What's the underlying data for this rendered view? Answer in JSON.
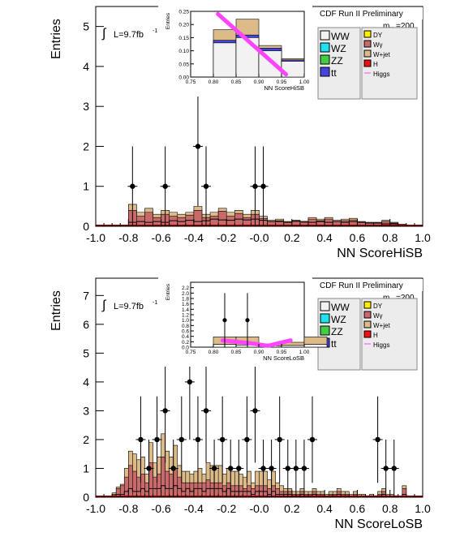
{
  "colors": {
    "ww": "#f2f2f2",
    "wz": "#22e0ee",
    "zz": "#44cc44",
    "tt": "#4444dd",
    "dy": "#ffee00",
    "wg": "#c86a6a",
    "wjet": "#ddbb88",
    "h": "#ee1111",
    "higgs": "#ff44ff",
    "frame": "#000000"
  },
  "chart_data": [
    {
      "type": "histogram",
      "header": "CDF Run II Preliminary",
      "xlabel": "NN ScoreHiSB",
      "ylabel": "Entries",
      "lumi_label": "L=9.7fb",
      "lumi_exp": "-1",
      "mass_label": "m",
      "mass_sub": "H",
      "mass_value": "=200",
      "xlim": [
        -1.0,
        1.0
      ],
      "ylim": [
        0,
        5.5
      ],
      "xticks": [
        "-1.0",
        "-0.8",
        "-0.6",
        "-0.4",
        "-0.2",
        "-0.0",
        "0.2",
        "0.4",
        "0.6",
        "0.8",
        "1.0"
      ],
      "yticks": [
        "0",
        "1",
        "2",
        "3",
        "4",
        "5"
      ],
      "legend_left": [
        "WW",
        "WZ",
        "ZZ",
        "tt"
      ],
      "legend_right": [
        "DY",
        "Wγ",
        "W+jet",
        "H",
        "Higgs"
      ],
      "bin_edges_from": -0.8,
      "bin_width": 0.05,
      "stack_total": [
        0.55,
        0.35,
        0.45,
        0.3,
        0.4,
        0.35,
        0.3,
        0.35,
        0.5,
        0.3,
        0.35,
        0.45,
        0.35,
        0.4,
        0.3,
        0.4,
        0.25,
        0.15,
        0.18,
        0.12,
        0.15,
        0.12,
        0.22,
        0.18,
        0.22,
        0.15,
        0.18,
        0.2,
        0.12,
        0.1,
        0.1,
        0.15,
        0.1,
        0.05
      ],
      "wjet_top": [
        0.55,
        0.35,
        0.45,
        0.3,
        0.4,
        0.35,
        0.3,
        0.35,
        0.5,
        0.3,
        0.35,
        0.45,
        0.35,
        0.4,
        0.3,
        0.4,
        0.25,
        0.15,
        0.18,
        0.12,
        0.15,
        0.12,
        0.22,
        0.18,
        0.22,
        0.15,
        0.18,
        0.2,
        0.12,
        0.1,
        0.1,
        0.15,
        0.1,
        0.05
      ],
      "wg_top": [
        0.4,
        0.25,
        0.35,
        0.22,
        0.3,
        0.25,
        0.22,
        0.28,
        0.4,
        0.22,
        0.25,
        0.38,
        0.25,
        0.32,
        0.22,
        0.3,
        0.2,
        0.12,
        0.14,
        0.1,
        0.12,
        0.1,
        0.18,
        0.14,
        0.18,
        0.12,
        0.14,
        0.16,
        0.1,
        0.08,
        0.08,
        0.12,
        0.08,
        0.04
      ],
      "ww_line": [
        0.1,
        0.12,
        0.1,
        0.12,
        0.1,
        0.14,
        0.12,
        0.15,
        0.12,
        0.14,
        0.18,
        0.16,
        0.15,
        0.18,
        0.16,
        0.18,
        0.15,
        0.12,
        0.12,
        0.1,
        0.14,
        0.12,
        0.1,
        0.12,
        0.1,
        0.12,
        0.1,
        0.12,
        0.1,
        0.08,
        0.08,
        0.06,
        0.06,
        0.04
      ],
      "data_x": [
        -0.775,
        -0.575,
        -0.375,
        -0.325,
        -0.025,
        0.025
      ],
      "data_y": [
        1,
        1,
        2,
        1,
        1,
        1
      ],
      "data_err": [
        1.0,
        1.0,
        1.5,
        1.0,
        1.0,
        1.0
      ],
      "inset": {
        "xlabel": "NN ScoreHiSB",
        "ylabel": "Entries",
        "xlim": [
          0.75,
          1.0
        ],
        "ylim": [
          0,
          0.25
        ],
        "xticks": [
          "0.75",
          "0.80",
          "0.85",
          "0.90",
          "0.95",
          "1.00"
        ],
        "yticks": [
          "0.00",
          "0.05",
          "0.10",
          "0.15",
          "0.20",
          "0.25"
        ],
        "bins_from": 0.8,
        "bin_width": 0.05,
        "stack_total": [
          0.18,
          0.22,
          0.12,
          0.07
        ],
        "ww_top": [
          0.13,
          0.15,
          0.1,
          0.06
        ],
        "tt_top": [
          0.14,
          0.16,
          0.11,
          0.065
        ],
        "higgs_x": [
          0.81,
          0.96
        ],
        "higgs_y": [
          0.24,
          0.01
        ]
      }
    },
    {
      "type": "histogram",
      "header": "CDF Run II Preliminary",
      "xlabel": "NN ScoreLoSB",
      "ylabel": "Entries",
      "lumi_label": "L=9.7fb",
      "lumi_exp": "-1",
      "mass_label": "m",
      "mass_sub": "H",
      "mass_value": "=200",
      "xlim": [
        -1.0,
        1.0
      ],
      "ylim": [
        0,
        7.6
      ],
      "xticks": [
        "-1.0",
        "-0.8",
        "-0.6",
        "-0.4",
        "-0.2",
        "-0.0",
        "0.2",
        "0.4",
        "0.6",
        "0.8",
        "1.0"
      ],
      "yticks": [
        "0",
        "1",
        "2",
        "3",
        "4",
        "5",
        "6",
        "7"
      ],
      "legend_left": [
        "WW",
        "WZ",
        "ZZ",
        "tt"
      ],
      "legend_right": [
        "DY",
        "Wγ",
        "W+jet",
        "H",
        "Higgs"
      ],
      "bin_edges_from": -0.9,
      "bin_width": 0.025,
      "stack_total": [
        0.15,
        0.35,
        0.45,
        1.0,
        1.6,
        1.5,
        1.3,
        1.4,
        0.8,
        1.9,
        1.2,
        1.4,
        2.2,
        1.6,
        1.4,
        1.8,
        1.1,
        0.9,
        0.9,
        0.8,
        0.9,
        1.0,
        0.8,
        1.2,
        1.1,
        1.1,
        1.1,
        0.8,
        1.0,
        0.9,
        0.9,
        0.8,
        0.7,
        0.9,
        0.5,
        0.9,
        0.9,
        0.9,
        0.6,
        0.9,
        0.5,
        0.4,
        0.3,
        0.3,
        0.2,
        0.2,
        0.3,
        0.2,
        0.2,
        0.3,
        0.2,
        0.2,
        0.1,
        0.2,
        0.2,
        0.3,
        0.2,
        0.2,
        0.1,
        0.2,
        0.1,
        0.1,
        0.05,
        0.1,
        0.05,
        0.2,
        0.3,
        0.1,
        0.1,
        0.05,
        0.0,
        0.4
      ],
      "wg_top": [
        0.1,
        0.3,
        0.4,
        0.7,
        1.1,
        0.9,
        0.7,
        0.8,
        0.5,
        1.2,
        0.7,
        0.8,
        1.4,
        0.9,
        0.8,
        1.0,
        0.7,
        0.5,
        0.5,
        0.5,
        0.5,
        0.5,
        0.5,
        0.6,
        0.5,
        0.5,
        0.5,
        0.4,
        0.5,
        0.4,
        0.4,
        0.4,
        0.3,
        0.4,
        0.3,
        0.4,
        0.4,
        0.4,
        0.3,
        0.4,
        0.3,
        0.2,
        0.2,
        0.2,
        0.1,
        0.1,
        0.2,
        0.1,
        0.1,
        0.2,
        0.1,
        0.1,
        0.05,
        0.1,
        0.1,
        0.2,
        0.1,
        0.1,
        0.05,
        0.1,
        0.05,
        0.05,
        0.03,
        0.05,
        0.03,
        0.1,
        0.2,
        0.05,
        0.05,
        0.03,
        0.0,
        0.3
      ],
      "ww_line": [
        0.05,
        0.1,
        0.1,
        0.2,
        0.3,
        0.2,
        0.2,
        0.3,
        0.2,
        0.3,
        0.3,
        0.3,
        0.4,
        0.3,
        0.3,
        0.4,
        0.3,
        0.2,
        0.3,
        0.2,
        0.3,
        0.3,
        0.2,
        0.3,
        0.3,
        0.3,
        0.3,
        0.2,
        0.3,
        0.2,
        0.2,
        0.2,
        0.2,
        0.2,
        0.1,
        0.2,
        0.2,
        0.2,
        0.1,
        0.2,
        0.1,
        0.1,
        0.1,
        0.1,
        0.05,
        0.05,
        0.1,
        0.05,
        0.05,
        0.1,
        0.05,
        0.05,
        0.03,
        0.05,
        0.05,
        0.1,
        0.05,
        0.05,
        0.03,
        0.05,
        0.03,
        0.03,
        0.02,
        0.03,
        0.02,
        0.05,
        0.1,
        0.03,
        0.03,
        0.02,
        0.0,
        0.1
      ],
      "data_x": [
        -0.725,
        -0.675,
        -0.625,
        -0.575,
        -0.525,
        -0.475,
        -0.425,
        -0.375,
        -0.325,
        -0.275,
        -0.225,
        -0.175,
        -0.125,
        -0.075,
        -0.025,
        0.025,
        0.075,
        0.125,
        0.175,
        0.225,
        0.275,
        0.325,
        0.725,
        0.775,
        0.825
      ],
      "data_y": [
        2,
        1,
        2,
        3,
        1,
        2,
        4,
        2,
        3,
        1,
        2,
        1,
        1,
        2,
        3,
        1,
        1,
        2,
        1,
        1,
        1,
        2,
        2,
        1,
        1
      ],
      "data_err": [
        1.5,
        1.0,
        1.5,
        1.8,
        1.0,
        1.5,
        2.0,
        1.5,
        1.8,
        1.0,
        1.5,
        1.0,
        1.0,
        1.5,
        1.8,
        1.0,
        1.0,
        1.5,
        1.0,
        1.0,
        1.0,
        1.5,
        1.5,
        1.0,
        1.0
      ],
      "inset": {
        "xlabel": "NN ScoreLoSB",
        "ylabel": "Entries",
        "xlim": [
          0.75,
          1.0
        ],
        "ylim": [
          0,
          2.4
        ],
        "xticks": [
          "0.75",
          "0.80",
          "0.85",
          "0.90",
          "0.95",
          "1.00"
        ],
        "yticks": [
          "0.0",
          "0.2",
          "0.4",
          "0.6",
          "0.8",
          "1.0",
          "1.2",
          "1.4",
          "1.6",
          "1.8",
          "2.0",
          "2.2"
        ],
        "bins_from": 0.8,
        "bin_width": 0.05,
        "stack_total": [
          0.38,
          0.38,
          0.12,
          0.18,
          0.38
        ],
        "ww_top": [
          0.1,
          0.08,
          0.05,
          0.06,
          0.1
        ],
        "tt_top": [
          0.1,
          0.08,
          0.05,
          0.06,
          0.1
        ],
        "higgs_x": [
          0.82,
          0.88,
          0.92,
          0.97
        ],
        "higgs_y": [
          0.25,
          0.15,
          0.05,
          0.25
        ],
        "data_x": [
          0.825,
          0.875
        ],
        "data_y": [
          1,
          1
        ],
        "data_err": [
          1.0,
          1.0
        ]
      }
    }
  ]
}
